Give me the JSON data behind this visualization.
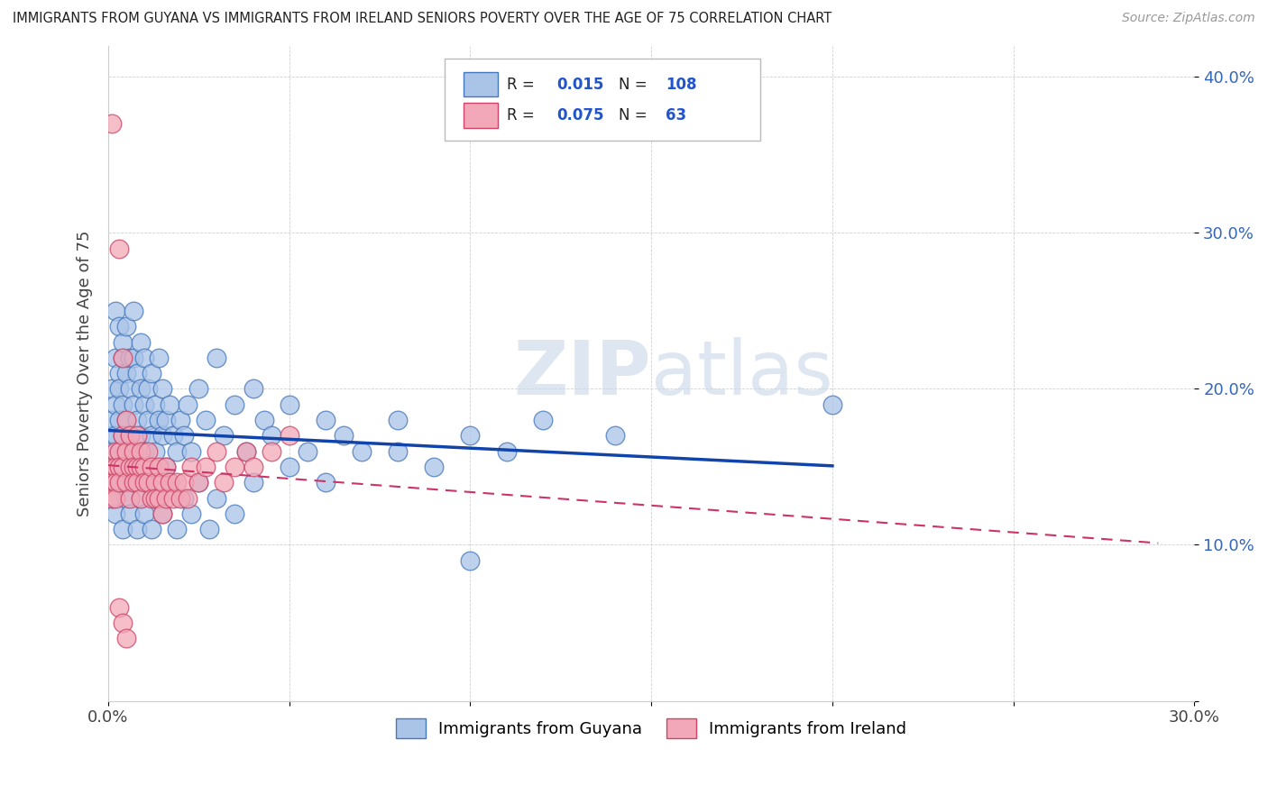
{
  "title": "IMMIGRANTS FROM GUYANA VS IMMIGRANTS FROM IRELAND SENIORS POVERTY OVER THE AGE OF 75 CORRELATION CHART",
  "source": "Source: ZipAtlas.com",
  "ylabel": "Seniors Poverty Over the Age of 75",
  "xlim": [
    0,
    0.3
  ],
  "ylim": [
    0,
    0.42
  ],
  "xtick_vals": [
    0.0,
    0.05,
    0.1,
    0.15,
    0.2,
    0.25,
    0.3
  ],
  "xticklabels": [
    "0.0%",
    "",
    "",
    "",
    "",
    "",
    "30.0%"
  ],
  "ytick_vals": [
    0.0,
    0.1,
    0.2,
    0.3,
    0.4
  ],
  "yticklabels": [
    "",
    "10.0%",
    "20.0%",
    "30.0%",
    "40.0%"
  ],
  "guyana_color": "#aac4e8",
  "ireland_color": "#f2a8b8",
  "guyana_edge": "#4477bb",
  "ireland_edge": "#cc4466",
  "legend_R1": "0.015",
  "legend_N1": "108",
  "legend_R2": "0.075",
  "legend_N2": "63",
  "watermark_text": "ZIPatlas",
  "line_guyana_color": "#1144aa",
  "line_ireland_color": "#cc3366",
  "guyana_x": [
    0.001,
    0.001,
    0.001,
    0.001,
    0.001,
    0.002,
    0.002,
    0.002,
    0.002,
    0.002,
    0.003,
    0.003,
    0.003,
    0.003,
    0.003,
    0.004,
    0.004,
    0.004,
    0.004,
    0.004,
    0.005,
    0.005,
    0.005,
    0.005,
    0.006,
    0.006,
    0.006,
    0.006,
    0.007,
    0.007,
    0.007,
    0.007,
    0.008,
    0.008,
    0.008,
    0.009,
    0.009,
    0.009,
    0.01,
    0.01,
    0.01,
    0.011,
    0.011,
    0.012,
    0.012,
    0.013,
    0.013,
    0.014,
    0.014,
    0.015,
    0.015,
    0.016,
    0.016,
    0.017,
    0.018,
    0.019,
    0.02,
    0.021,
    0.022,
    0.023,
    0.025,
    0.027,
    0.03,
    0.032,
    0.035,
    0.038,
    0.04,
    0.043,
    0.045,
    0.05,
    0.055,
    0.06,
    0.065,
    0.07,
    0.08,
    0.09,
    0.1,
    0.11,
    0.12,
    0.14,
    0.001,
    0.002,
    0.003,
    0.004,
    0.005,
    0.006,
    0.007,
    0.008,
    0.009,
    0.01,
    0.011,
    0.012,
    0.013,
    0.015,
    0.017,
    0.019,
    0.021,
    0.023,
    0.025,
    0.028,
    0.03,
    0.035,
    0.04,
    0.05,
    0.06,
    0.08,
    0.1,
    0.2
  ],
  "guyana_y": [
    0.17,
    0.15,
    0.18,
    0.2,
    0.16,
    0.22,
    0.19,
    0.25,
    0.14,
    0.17,
    0.21,
    0.18,
    0.24,
    0.16,
    0.2,
    0.19,
    0.22,
    0.17,
    0.15,
    0.23,
    0.18,
    0.21,
    0.16,
    0.24,
    0.2,
    0.17,
    0.22,
    0.15,
    0.25,
    0.19,
    0.16,
    0.22,
    0.18,
    0.21,
    0.15,
    0.2,
    0.17,
    0.23,
    0.19,
    0.16,
    0.22,
    0.18,
    0.2,
    0.17,
    0.21,
    0.16,
    0.19,
    0.18,
    0.22,
    0.17,
    0.2,
    0.18,
    0.15,
    0.19,
    0.17,
    0.16,
    0.18,
    0.17,
    0.19,
    0.16,
    0.2,
    0.18,
    0.22,
    0.17,
    0.19,
    0.16,
    0.2,
    0.18,
    0.17,
    0.19,
    0.16,
    0.18,
    0.17,
    0.16,
    0.18,
    0.15,
    0.17,
    0.16,
    0.18,
    0.17,
    0.13,
    0.12,
    0.14,
    0.11,
    0.13,
    0.12,
    0.14,
    0.11,
    0.13,
    0.12,
    0.14,
    0.11,
    0.13,
    0.12,
    0.14,
    0.11,
    0.13,
    0.12,
    0.14,
    0.11,
    0.13,
    0.12,
    0.14,
    0.15,
    0.14,
    0.16,
    0.09,
    0.19
  ],
  "ireland_x": [
    0.001,
    0.001,
    0.001,
    0.001,
    0.002,
    0.002,
    0.002,
    0.002,
    0.003,
    0.003,
    0.003,
    0.003,
    0.004,
    0.004,
    0.004,
    0.005,
    0.005,
    0.005,
    0.006,
    0.006,
    0.006,
    0.007,
    0.007,
    0.007,
    0.008,
    0.008,
    0.008,
    0.009,
    0.009,
    0.009,
    0.01,
    0.01,
    0.011,
    0.011,
    0.012,
    0.012,
    0.013,
    0.013,
    0.014,
    0.014,
    0.015,
    0.015,
    0.016,
    0.016,
    0.017,
    0.018,
    0.019,
    0.02,
    0.021,
    0.022,
    0.023,
    0.025,
    0.027,
    0.03,
    0.032,
    0.035,
    0.038,
    0.04,
    0.045,
    0.05,
    0.003,
    0.004,
    0.005
  ],
  "ireland_y": [
    0.37,
    0.15,
    0.14,
    0.13,
    0.16,
    0.15,
    0.14,
    0.13,
    0.29,
    0.16,
    0.15,
    0.14,
    0.22,
    0.17,
    0.15,
    0.18,
    0.16,
    0.14,
    0.17,
    0.15,
    0.13,
    0.16,
    0.15,
    0.14,
    0.17,
    0.15,
    0.14,
    0.16,
    0.15,
    0.13,
    0.15,
    0.14,
    0.16,
    0.14,
    0.15,
    0.13,
    0.14,
    0.13,
    0.15,
    0.13,
    0.14,
    0.12,
    0.15,
    0.13,
    0.14,
    0.13,
    0.14,
    0.13,
    0.14,
    0.13,
    0.15,
    0.14,
    0.15,
    0.16,
    0.14,
    0.15,
    0.16,
    0.15,
    0.16,
    0.17,
    0.06,
    0.05,
    0.04
  ]
}
